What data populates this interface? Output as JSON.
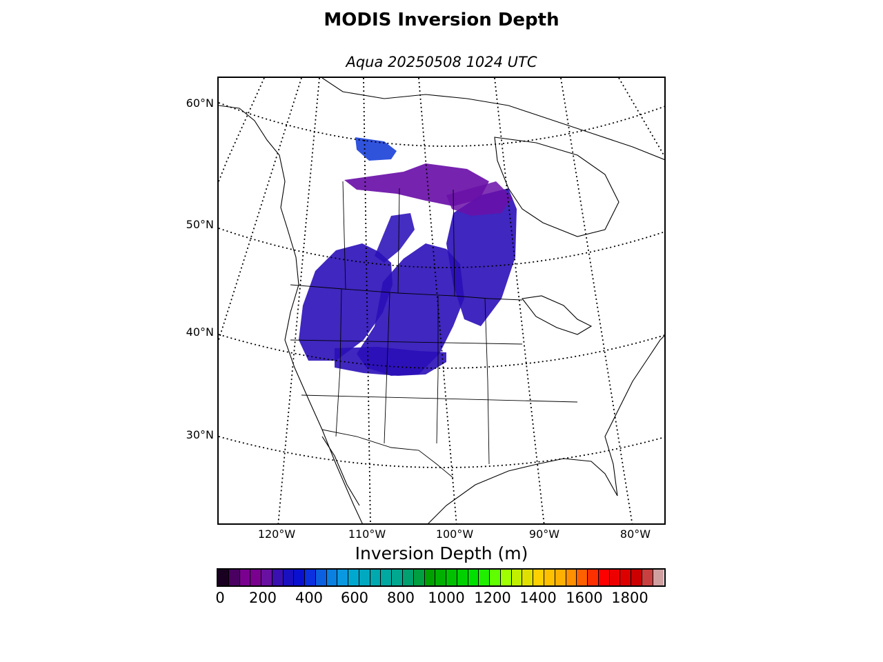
{
  "title": "MODIS Inversion Depth",
  "subtitle": "Aqua 20250508 1024 UTC",
  "colorbar": {
    "label": "Inversion Depth (m)",
    "ticks": [
      "0",
      "200",
      "400",
      "600",
      "800",
      "1000",
      "1200",
      "1400",
      "1600",
      "1800"
    ],
    "colors": [
      "#1a0020",
      "#4a0060",
      "#7a0090",
      "#7a0090",
      "#6a10a0",
      "#3a10b0",
      "#1a10c0",
      "#0a10d0",
      "#0a30e0",
      "#0a60e0",
      "#0a80e0",
      "#0a98e0",
      "#00a8d0",
      "#00a8c0",
      "#00a8b0",
      "#00a8a0",
      "#00a890",
      "#00a070",
      "#00a040",
      "#00a000",
      "#00b000",
      "#00c000",
      "#00d000",
      "#00e000",
      "#20f000",
      "#60ff00",
      "#a0ff00",
      "#c0f000",
      "#e0e000",
      "#ffd000",
      "#ffc000",
      "#ffb000",
      "#ff9000",
      "#ff6000",
      "#ff3000",
      "#ff0000",
      "#ee0000",
      "#dd0000",
      "#cc0000",
      "#c84040",
      "#d0a0a0"
    ]
  },
  "latitude_labels": [
    "60°N",
    "50°N",
    "40°N",
    "30°N"
  ],
  "longitude_labels": [
    "120°W",
    "110°W",
    "100°W",
    "90°W",
    "80°W"
  ],
  "data_colors": {
    "inversion_low": "#6a10a8",
    "inversion_mid": "#2a10b8",
    "inversion_high": "#1a40d8"
  }
}
